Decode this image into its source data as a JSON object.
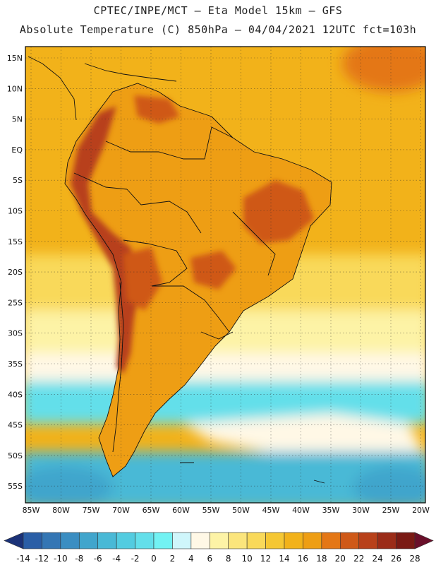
{
  "header": {
    "line1": "CPTEC/INPE/MCT –  Eta Model 15km – GFS",
    "line2": "Absolute Temperature (C) 850hPa – 04/04/2021 12UTC fct=103h"
  },
  "axes": {
    "lat_labels": [
      "15N",
      "10N",
      "5N",
      "EQ",
      "5S",
      "10S",
      "15S",
      "20S",
      "25S",
      "30S",
      "35S",
      "40S",
      "45S",
      "50S",
      "55S"
    ],
    "lon_labels": [
      "85W",
      "80W",
      "75W",
      "70W",
      "65W",
      "60W",
      "55W",
      "50W",
      "45W",
      "40W",
      "35W",
      "30W",
      "25W",
      "20W"
    ]
  },
  "colorbar": {
    "labels": [
      "-14",
      "-12",
      "-10",
      "-8",
      "-6",
      "-4",
      "-2",
      "0",
      "2",
      "4",
      "6",
      "8",
      "10",
      "12",
      "14",
      "16",
      "18",
      "20",
      "22",
      "24",
      "26",
      "28"
    ],
    "colors": [
      "#1f3f8f",
      "#2a5ea6",
      "#3476b4",
      "#3b8ec2",
      "#41a5cc",
      "#49b9d6",
      "#53cce0",
      "#63dfea",
      "#72f2f3",
      "#cff6fb",
      "#fff8e6",
      "#fdf3a6",
      "#fbe57c",
      "#f9d95a",
      "#f5c733",
      "#f2b21a",
      "#ee9e14",
      "#e47716",
      "#cf5918",
      "#b8411a",
      "#9b2c18",
      "#7a1a14"
    ],
    "under_color": "#1b3278",
    "over_color": "#6a0f2a"
  },
  "map_colors": {
    "ocean_north": "#f2b21a",
    "ocean_warm_east": "#e47716",
    "ocean_mid": "#f9d95a",
    "ocean_pale": "#fdf3a6",
    "ocean_cream": "#fff8e6",
    "ocean_cyan": "#63dfea",
    "ocean_light_blue": "#49b9d6",
    "ocean_blue": "#41a5cc",
    "land_base": "#ee9e14",
    "land_hot": "#cf5918",
    "land_hotter": "#b8411a"
  }
}
